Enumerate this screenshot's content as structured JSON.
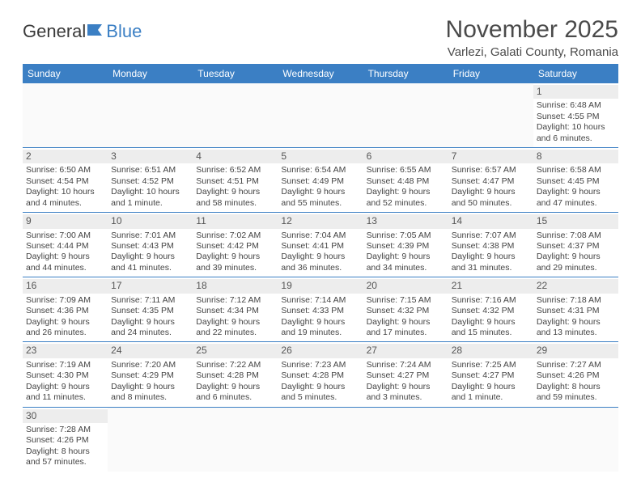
{
  "logo": {
    "text1": "General",
    "text2": "Blue"
  },
  "title": "November 2025",
  "location": "Varlezi, Galati County, Romania",
  "colors": {
    "header_bg": "#3b7fc4",
    "header_text": "#ffffff",
    "row_divider": "#3b7fc4",
    "daynum_bg": "#ededed",
    "body_text": "#444444",
    "logo_blue": "#3b7fc4"
  },
  "day_names": [
    "Sunday",
    "Monday",
    "Tuesday",
    "Wednesday",
    "Thursday",
    "Friday",
    "Saturday"
  ],
  "weeks": [
    [
      null,
      null,
      null,
      null,
      null,
      null,
      {
        "n": "1",
        "sunrise": "Sunrise: 6:48 AM",
        "sunset": "Sunset: 4:55 PM",
        "d1": "Daylight: 10 hours",
        "d2": "and 6 minutes."
      }
    ],
    [
      {
        "n": "2",
        "sunrise": "Sunrise: 6:50 AM",
        "sunset": "Sunset: 4:54 PM",
        "d1": "Daylight: 10 hours",
        "d2": "and 4 minutes."
      },
      {
        "n": "3",
        "sunrise": "Sunrise: 6:51 AM",
        "sunset": "Sunset: 4:52 PM",
        "d1": "Daylight: 10 hours",
        "d2": "and 1 minute."
      },
      {
        "n": "4",
        "sunrise": "Sunrise: 6:52 AM",
        "sunset": "Sunset: 4:51 PM",
        "d1": "Daylight: 9 hours",
        "d2": "and 58 minutes."
      },
      {
        "n": "5",
        "sunrise": "Sunrise: 6:54 AM",
        "sunset": "Sunset: 4:49 PM",
        "d1": "Daylight: 9 hours",
        "d2": "and 55 minutes."
      },
      {
        "n": "6",
        "sunrise": "Sunrise: 6:55 AM",
        "sunset": "Sunset: 4:48 PM",
        "d1": "Daylight: 9 hours",
        "d2": "and 52 minutes."
      },
      {
        "n": "7",
        "sunrise": "Sunrise: 6:57 AM",
        "sunset": "Sunset: 4:47 PM",
        "d1": "Daylight: 9 hours",
        "d2": "and 50 minutes."
      },
      {
        "n": "8",
        "sunrise": "Sunrise: 6:58 AM",
        "sunset": "Sunset: 4:45 PM",
        "d1": "Daylight: 9 hours",
        "d2": "and 47 minutes."
      }
    ],
    [
      {
        "n": "9",
        "sunrise": "Sunrise: 7:00 AM",
        "sunset": "Sunset: 4:44 PM",
        "d1": "Daylight: 9 hours",
        "d2": "and 44 minutes."
      },
      {
        "n": "10",
        "sunrise": "Sunrise: 7:01 AM",
        "sunset": "Sunset: 4:43 PM",
        "d1": "Daylight: 9 hours",
        "d2": "and 41 minutes."
      },
      {
        "n": "11",
        "sunrise": "Sunrise: 7:02 AM",
        "sunset": "Sunset: 4:42 PM",
        "d1": "Daylight: 9 hours",
        "d2": "and 39 minutes."
      },
      {
        "n": "12",
        "sunrise": "Sunrise: 7:04 AM",
        "sunset": "Sunset: 4:41 PM",
        "d1": "Daylight: 9 hours",
        "d2": "and 36 minutes."
      },
      {
        "n": "13",
        "sunrise": "Sunrise: 7:05 AM",
        "sunset": "Sunset: 4:39 PM",
        "d1": "Daylight: 9 hours",
        "d2": "and 34 minutes."
      },
      {
        "n": "14",
        "sunrise": "Sunrise: 7:07 AM",
        "sunset": "Sunset: 4:38 PM",
        "d1": "Daylight: 9 hours",
        "d2": "and 31 minutes."
      },
      {
        "n": "15",
        "sunrise": "Sunrise: 7:08 AM",
        "sunset": "Sunset: 4:37 PM",
        "d1": "Daylight: 9 hours",
        "d2": "and 29 minutes."
      }
    ],
    [
      {
        "n": "16",
        "sunrise": "Sunrise: 7:09 AM",
        "sunset": "Sunset: 4:36 PM",
        "d1": "Daylight: 9 hours",
        "d2": "and 26 minutes."
      },
      {
        "n": "17",
        "sunrise": "Sunrise: 7:11 AM",
        "sunset": "Sunset: 4:35 PM",
        "d1": "Daylight: 9 hours",
        "d2": "and 24 minutes."
      },
      {
        "n": "18",
        "sunrise": "Sunrise: 7:12 AM",
        "sunset": "Sunset: 4:34 PM",
        "d1": "Daylight: 9 hours",
        "d2": "and 22 minutes."
      },
      {
        "n": "19",
        "sunrise": "Sunrise: 7:14 AM",
        "sunset": "Sunset: 4:33 PM",
        "d1": "Daylight: 9 hours",
        "d2": "and 19 minutes."
      },
      {
        "n": "20",
        "sunrise": "Sunrise: 7:15 AM",
        "sunset": "Sunset: 4:32 PM",
        "d1": "Daylight: 9 hours",
        "d2": "and 17 minutes."
      },
      {
        "n": "21",
        "sunrise": "Sunrise: 7:16 AM",
        "sunset": "Sunset: 4:32 PM",
        "d1": "Daylight: 9 hours",
        "d2": "and 15 minutes."
      },
      {
        "n": "22",
        "sunrise": "Sunrise: 7:18 AM",
        "sunset": "Sunset: 4:31 PM",
        "d1": "Daylight: 9 hours",
        "d2": "and 13 minutes."
      }
    ],
    [
      {
        "n": "23",
        "sunrise": "Sunrise: 7:19 AM",
        "sunset": "Sunset: 4:30 PM",
        "d1": "Daylight: 9 hours",
        "d2": "and 11 minutes."
      },
      {
        "n": "24",
        "sunrise": "Sunrise: 7:20 AM",
        "sunset": "Sunset: 4:29 PM",
        "d1": "Daylight: 9 hours",
        "d2": "and 8 minutes."
      },
      {
        "n": "25",
        "sunrise": "Sunrise: 7:22 AM",
        "sunset": "Sunset: 4:28 PM",
        "d1": "Daylight: 9 hours",
        "d2": "and 6 minutes."
      },
      {
        "n": "26",
        "sunrise": "Sunrise: 7:23 AM",
        "sunset": "Sunset: 4:28 PM",
        "d1": "Daylight: 9 hours",
        "d2": "and 5 minutes."
      },
      {
        "n": "27",
        "sunrise": "Sunrise: 7:24 AM",
        "sunset": "Sunset: 4:27 PM",
        "d1": "Daylight: 9 hours",
        "d2": "and 3 minutes."
      },
      {
        "n": "28",
        "sunrise": "Sunrise: 7:25 AM",
        "sunset": "Sunset: 4:27 PM",
        "d1": "Daylight: 9 hours",
        "d2": "and 1 minute."
      },
      {
        "n": "29",
        "sunrise": "Sunrise: 7:27 AM",
        "sunset": "Sunset: 4:26 PM",
        "d1": "Daylight: 8 hours",
        "d2": "and 59 minutes."
      }
    ],
    [
      {
        "n": "30",
        "sunrise": "Sunrise: 7:28 AM",
        "sunset": "Sunset: 4:26 PM",
        "d1": "Daylight: 8 hours",
        "d2": "and 57 minutes."
      },
      null,
      null,
      null,
      null,
      null,
      null
    ]
  ]
}
